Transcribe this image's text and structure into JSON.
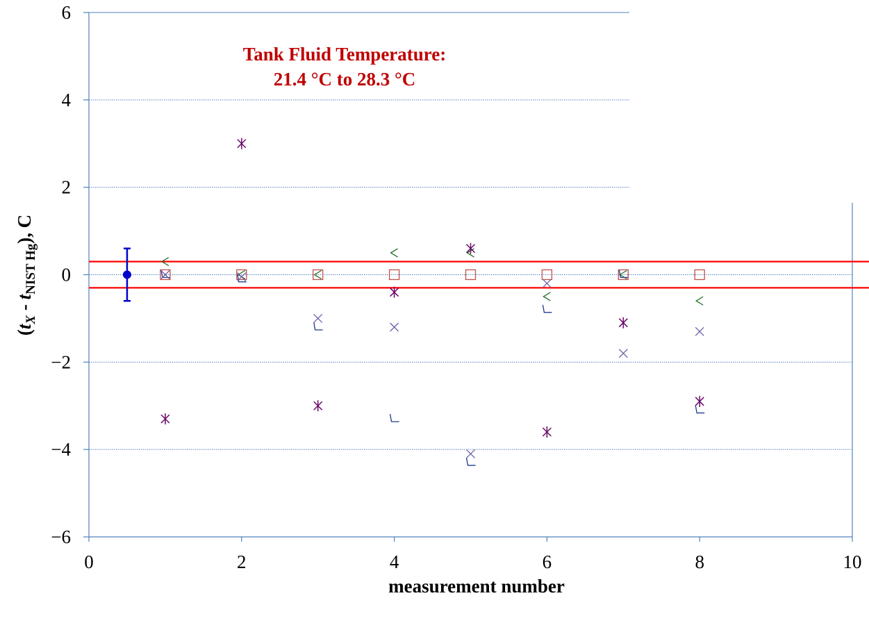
{
  "chart_data": {
    "type": "scatter",
    "title": "",
    "annotation": {
      "line1": "Tank Fluid Temperature:",
      "line2": "21.4 °C to  28.3 °C"
    },
    "xlabel": "measurement number",
    "ylabel": {
      "open": "(",
      "t1": "t",
      "sub1": "X",
      "mid": " - ",
      "t2": "t",
      "sub2": "NIST Hg",
      "close": "), C"
    },
    "xlim": [
      0,
      10
    ],
    "ylim": [
      -6,
      6
    ],
    "x_ticks": [
      0,
      2,
      4,
      6,
      8,
      10
    ],
    "y_ticks": [
      6,
      4,
      2,
      0,
      -2,
      -4,
      -6
    ],
    "x_tick_labels": [
      "0",
      "2",
      "4",
      "6",
      "8",
      "10"
    ],
    "y_tick_labels": [
      "6",
      "4",
      "2",
      "0",
      "−2",
      "−4",
      "−6"
    ],
    "grid": "horizontal dotted",
    "reference_point": {
      "x": 0.5,
      "y": 0,
      "err": 0.6,
      "color": "#0000cc"
    },
    "tolerance_band": {
      "upper": 0.3,
      "lower": -0.3,
      "color": "#ff0000"
    },
    "series": [
      {
        "marker": "square",
        "color": "#c0504d",
        "points": [
          [
            1,
            0
          ],
          [
            2,
            0
          ],
          [
            3,
            0
          ],
          [
            4,
            0
          ],
          [
            5,
            0
          ],
          [
            6,
            0
          ],
          [
            7,
            0
          ],
          [
            8,
            0
          ]
        ]
      },
      {
        "marker": "diamond",
        "color": "#1f6b1f",
        "points": [
          [
            1,
            0.3
          ],
          [
            2,
            0.0
          ],
          [
            3,
            0.0
          ],
          [
            4,
            0.5
          ],
          [
            5,
            0.5
          ],
          [
            6,
            -0.5
          ],
          [
            7,
            0.0
          ],
          [
            8,
            -0.6
          ]
        ]
      },
      {
        "marker": "triangle",
        "color": "#1f3b8c",
        "points": [
          [
            1,
            0.0
          ],
          [
            2,
            -0.1
          ],
          [
            3,
            -1.2
          ],
          [
            4,
            -3.3
          ],
          [
            5,
            -4.3
          ],
          [
            6,
            -0.8
          ],
          [
            7,
            0.0
          ],
          [
            8,
            -3.1
          ]
        ]
      },
      {
        "marker": "x",
        "color": "#7060a8",
        "points": [
          [
            1,
            0.0
          ],
          [
            2,
            -0.05
          ],
          [
            3,
            -1.0
          ],
          [
            4,
            -1.2
          ],
          [
            5,
            -4.1
          ],
          [
            6,
            -0.2
          ],
          [
            7,
            -1.8
          ],
          [
            8,
            -1.3
          ]
        ]
      },
      {
        "marker": "star",
        "color": "#6a0a6a",
        "points": [
          [
            1,
            -3.3
          ],
          [
            2,
            3.0
          ],
          [
            3,
            -3.0
          ],
          [
            4,
            -0.4
          ],
          [
            5,
            0.6
          ],
          [
            6,
            -3.6
          ],
          [
            7,
            -1.1
          ],
          [
            8,
            -2.9
          ]
        ]
      }
    ]
  }
}
